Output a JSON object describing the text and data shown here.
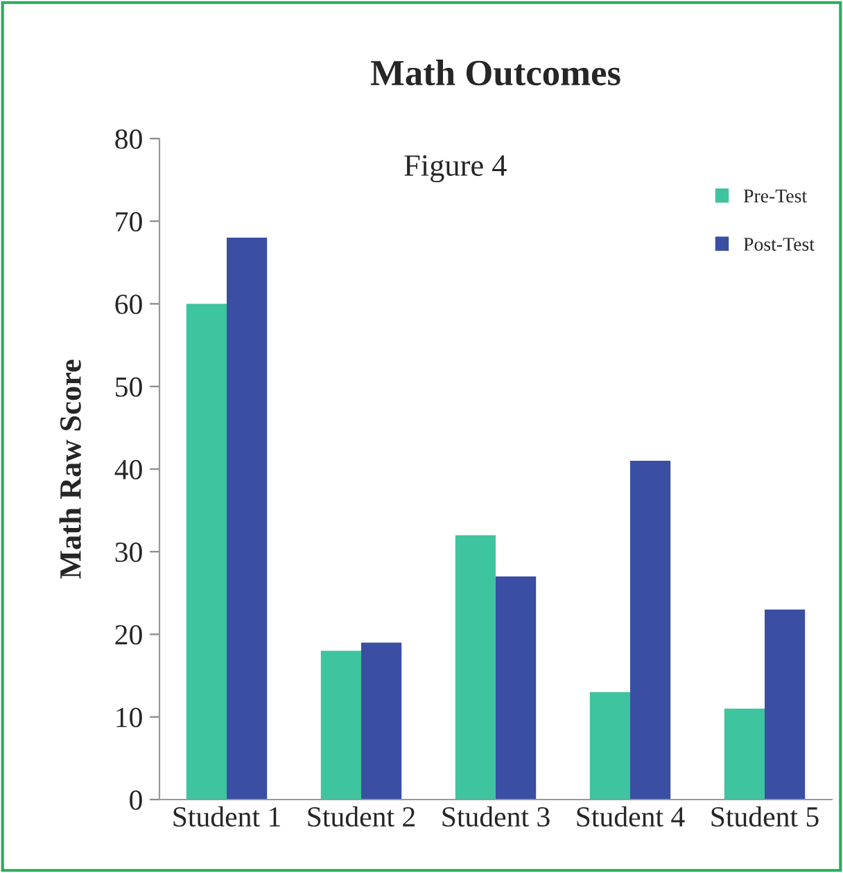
{
  "chart_data": {
    "type": "bar",
    "title": "Math Outcomes",
    "ylabel": "Math Raw Score",
    "categories": [
      "Student 1",
      "Student 2",
      "Student 3",
      "Student 4",
      "Student 5"
    ],
    "series": [
      {
        "name": "Pre-Test",
        "color": "#3ec49e",
        "values": [
          60,
          18,
          32,
          13,
          11
        ]
      },
      {
        "name": "Post-Test",
        "color": "#3a4ea3",
        "values": [
          68,
          19,
          27,
          41,
          23
        ]
      }
    ],
    "ylim": [
      0,
      80
    ],
    "yticks": [
      0,
      10,
      20,
      30,
      40,
      50,
      60,
      70,
      80
    ],
    "annotations": [
      "Figure 4"
    ],
    "grid": false,
    "legend": "top right"
  }
}
